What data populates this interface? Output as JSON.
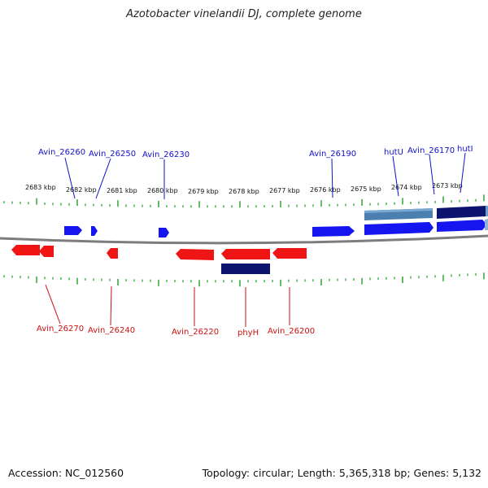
{
  "title": "Azotobacter vinelandii DJ, complete genome",
  "footer": {
    "accession": "Accession: NC_012560",
    "summary": "Topology: circular; Length: 5,365,318 bp; Genes: 5,132"
  },
  "colors": {
    "forward_gene": "#1010ee",
    "reverse_gene": "#ee1010",
    "feature_dark": "#0d1470",
    "feature_light": "#4b7fb0",
    "tick": "#22a022",
    "backbone": "#808080"
  },
  "scale": {
    "unit": "kbp",
    "labels": [
      "2683 kbp",
      "2682 kbp",
      "2681 kbp",
      "2680 kbp",
      "2679 kbp",
      "2678 kbp",
      "2677 kbp",
      "2676 kbp",
      "2675 kbp",
      "2674 kbp",
      "2673 kbp"
    ],
    "values": [
      2683,
      2682,
      2681,
      2680,
      2679,
      2678,
      2677,
      2676,
      2675,
      2674,
      2673
    ]
  },
  "genes_forward": [
    {
      "label": "Avin_26260"
    },
    {
      "label": "Avin_26250"
    },
    {
      "label": "Avin_26230"
    },
    {
      "label": "Avin_26190"
    },
    {
      "label": "hutU"
    },
    {
      "label": "Avin_26170"
    },
    {
      "label": "hutI"
    }
  ],
  "genes_reverse": [
    {
      "label": "Avin_26270"
    },
    {
      "label": "Avin_26240"
    },
    {
      "label": "Avin_26220"
    },
    {
      "label": "phyH"
    },
    {
      "label": "Avin_26200"
    }
  ]
}
